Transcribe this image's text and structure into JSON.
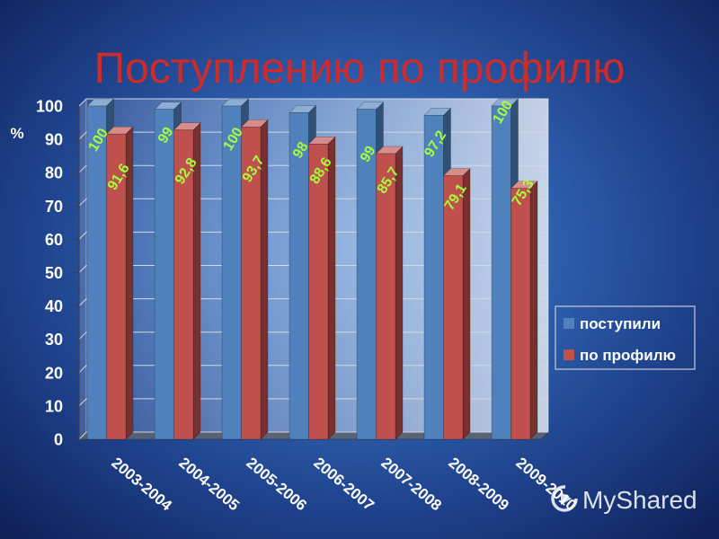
{
  "chart_data": {
    "type": "bar",
    "three_d": true,
    "title": "Поступлению по профилю",
    "ylabel": "%",
    "categories": [
      "2003-2004",
      "2004-2005",
      "2005-2006",
      "2006-2007",
      "2007-2008",
      "2008-2009",
      "2009-2010"
    ],
    "series": [
      {
        "name": "поступили",
        "values": [
          100,
          99,
          100,
          98,
          99,
          97.2,
          100
        ],
        "labels": [
          "100",
          "99",
          "100",
          "98",
          "99",
          "97,2",
          "100"
        ],
        "color": "#4f81bd"
      },
      {
        "name": "по профилю",
        "values": [
          91.6,
          92.8,
          93.7,
          88.6,
          85.7,
          79.1,
          75.3
        ],
        "labels": [
          "91,6",
          "92,8",
          "93,7",
          "88,6",
          "85,7",
          "79,1",
          "75,3"
        ],
        "color": "#c0504d"
      }
    ],
    "ylim": [
      0,
      100
    ],
    "yticks": [
      0,
      10,
      20,
      30,
      40,
      50,
      60,
      70,
      80,
      90,
      100
    ],
    "grid": true,
    "legend": "right",
    "data_label_color": "#a3ff3a"
  },
  "colors": {
    "title": "#cf2b2b"
  },
  "watermark": {
    "text": "MyShared",
    "icon": "myshared-logo-icon"
  }
}
